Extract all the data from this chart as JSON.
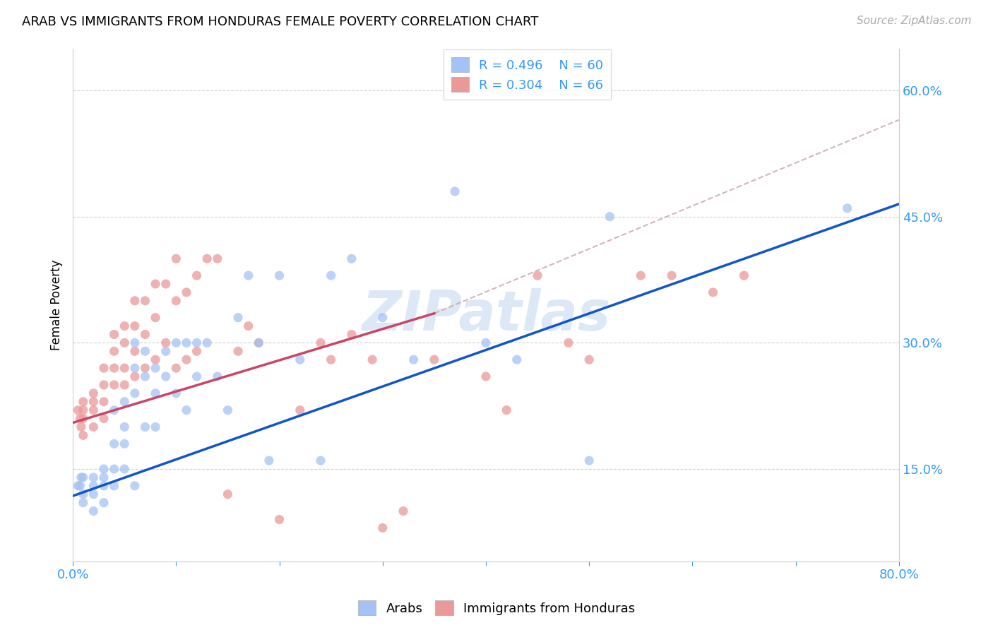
{
  "title": "ARAB VS IMMIGRANTS FROM HONDURAS FEMALE POVERTY CORRELATION CHART",
  "source": "Source: ZipAtlas.com",
  "ylabel": "Female Poverty",
  "xlim": [
    0.0,
    0.8
  ],
  "ylim": [
    0.04,
    0.65
  ],
  "watermark": "ZIPatlas",
  "legend_blue_r": "0.496",
  "legend_blue_n": "60",
  "legend_pink_r": "0.304",
  "legend_pink_n": "66",
  "blue_color": "#a4c2f4",
  "pink_color": "#ea9999",
  "blue_line_color": "#1155cc",
  "pink_line_color": "#cc4466",
  "dashed_line_color": "#ccaaaa",
  "arab_scatter_x": [
    0.005,
    0.007,
    0.008,
    0.01,
    0.01,
    0.01,
    0.02,
    0.02,
    0.02,
    0.02,
    0.03,
    0.03,
    0.03,
    0.03,
    0.04,
    0.04,
    0.04,
    0.04,
    0.05,
    0.05,
    0.05,
    0.05,
    0.06,
    0.06,
    0.06,
    0.06,
    0.07,
    0.07,
    0.07,
    0.08,
    0.08,
    0.08,
    0.09,
    0.09,
    0.1,
    0.1,
    0.11,
    0.11,
    0.12,
    0.12,
    0.13,
    0.14,
    0.15,
    0.16,
    0.17,
    0.18,
    0.19,
    0.2,
    0.22,
    0.24,
    0.25,
    0.27,
    0.3,
    0.33,
    0.37,
    0.4,
    0.43,
    0.5,
    0.52,
    0.75
  ],
  "arab_scatter_y": [
    0.13,
    0.13,
    0.14,
    0.14,
    0.12,
    0.11,
    0.14,
    0.13,
    0.12,
    0.1,
    0.15,
    0.14,
    0.13,
    0.11,
    0.22,
    0.18,
    0.15,
    0.13,
    0.23,
    0.2,
    0.18,
    0.15,
    0.3,
    0.27,
    0.24,
    0.13,
    0.29,
    0.26,
    0.2,
    0.27,
    0.24,
    0.2,
    0.29,
    0.26,
    0.3,
    0.24,
    0.3,
    0.22,
    0.3,
    0.26,
    0.3,
    0.26,
    0.22,
    0.33,
    0.38,
    0.3,
    0.16,
    0.38,
    0.28,
    0.16,
    0.38,
    0.4,
    0.33,
    0.28,
    0.48,
    0.3,
    0.28,
    0.16,
    0.45,
    0.46
  ],
  "honduras_scatter_x": [
    0.005,
    0.007,
    0.008,
    0.01,
    0.01,
    0.01,
    0.01,
    0.02,
    0.02,
    0.02,
    0.02,
    0.03,
    0.03,
    0.03,
    0.03,
    0.04,
    0.04,
    0.04,
    0.04,
    0.05,
    0.05,
    0.05,
    0.05,
    0.06,
    0.06,
    0.06,
    0.06,
    0.07,
    0.07,
    0.07,
    0.08,
    0.08,
    0.08,
    0.09,
    0.09,
    0.1,
    0.1,
    0.1,
    0.11,
    0.11,
    0.12,
    0.12,
    0.13,
    0.14,
    0.15,
    0.16,
    0.17,
    0.18,
    0.2,
    0.22,
    0.24,
    0.25,
    0.27,
    0.29,
    0.3,
    0.32,
    0.35,
    0.4,
    0.42,
    0.45,
    0.48,
    0.5,
    0.55,
    0.58,
    0.62,
    0.65
  ],
  "honduras_scatter_y": [
    0.22,
    0.21,
    0.2,
    0.23,
    0.22,
    0.21,
    0.19,
    0.24,
    0.23,
    0.22,
    0.2,
    0.27,
    0.25,
    0.23,
    0.21,
    0.31,
    0.29,
    0.27,
    0.25,
    0.32,
    0.3,
    0.27,
    0.25,
    0.35,
    0.32,
    0.29,
    0.26,
    0.35,
    0.31,
    0.27,
    0.37,
    0.33,
    0.28,
    0.37,
    0.3,
    0.4,
    0.35,
    0.27,
    0.36,
    0.28,
    0.38,
    0.29,
    0.4,
    0.4,
    0.12,
    0.29,
    0.32,
    0.3,
    0.09,
    0.22,
    0.3,
    0.28,
    0.31,
    0.28,
    0.08,
    0.1,
    0.28,
    0.26,
    0.22,
    0.38,
    0.3,
    0.28,
    0.38,
    0.38,
    0.36,
    0.38
  ],
  "blue_line_x": [
    0.0,
    0.8
  ],
  "blue_line_y": [
    0.118,
    0.465
  ],
  "pink_line_x": [
    0.0,
    0.35
  ],
  "pink_line_y": [
    0.205,
    0.335
  ],
  "dashed_line_x": [
    0.35,
    0.8
  ],
  "dashed_line_y": [
    0.335,
    0.565
  ]
}
